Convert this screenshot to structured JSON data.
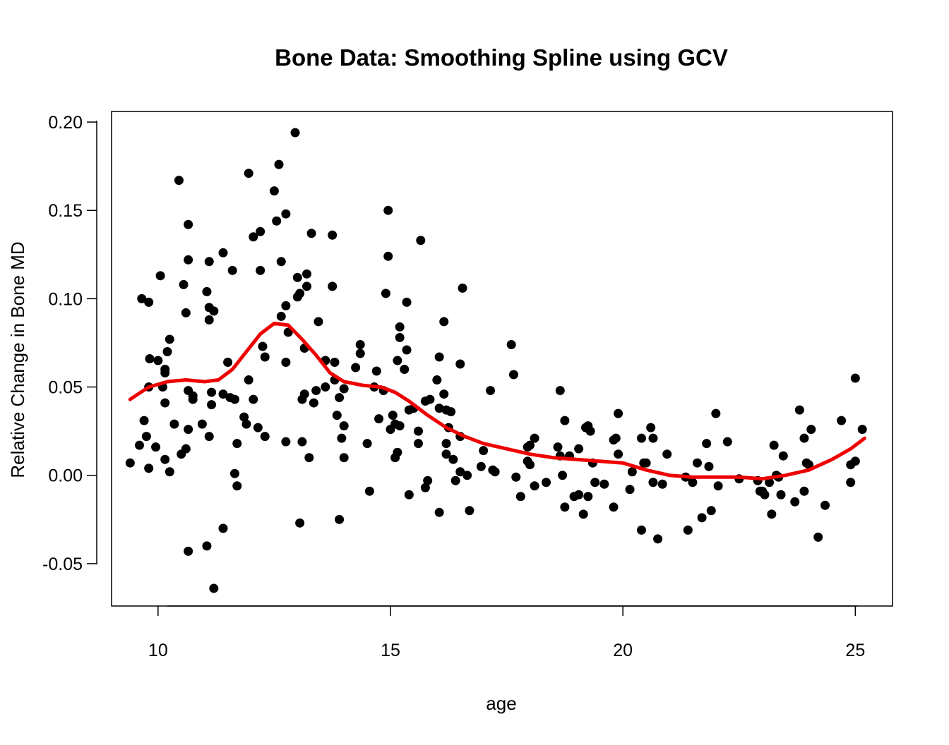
{
  "chart_data": {
    "type": "scatter",
    "title": "Bone Data: Smoothing Spline using GCV",
    "xlabel": "age",
    "ylabel": "Relative Change in Bone MD",
    "xlim": [
      9,
      25.8
    ],
    "ylim": [
      -0.074,
      0.206
    ],
    "xticks": [
      10,
      15,
      20,
      25
    ],
    "yticks": [
      -0.05,
      0.0,
      0.05,
      0.1,
      0.15,
      0.2
    ],
    "xtick_labels": [
      "10",
      "15",
      "20",
      "25"
    ],
    "ytick_labels": [
      "-0.05",
      "0.00",
      "0.05",
      "0.10",
      "0.15",
      "0.20"
    ],
    "grid": false,
    "series": [
      {
        "kind": "points",
        "color": "#000000",
        "points": [
          [
            9.4,
            0.007
          ],
          [
            9.6,
            0.017
          ],
          [
            9.65,
            0.1
          ],
          [
            9.7,
            0.031
          ],
          [
            9.75,
            0.022
          ],
          [
            9.8,
            0.004
          ],
          [
            9.8,
            0.05
          ],
          [
            9.8,
            0.098
          ],
          [
            9.82,
            0.066
          ],
          [
            9.95,
            0.016
          ],
          [
            10.0,
            0.065
          ],
          [
            10.05,
            0.113
          ],
          [
            10.1,
            0.05
          ],
          [
            10.15,
            0.06
          ],
          [
            10.15,
            0.058
          ],
          [
            10.15,
            0.041
          ],
          [
            10.15,
            0.009
          ],
          [
            10.2,
            0.07
          ],
          [
            10.25,
            0.077
          ],
          [
            10.25,
            0.002
          ],
          [
            10.35,
            0.029
          ],
          [
            10.45,
            0.167
          ],
          [
            10.5,
            0.012
          ],
          [
            10.55,
            0.108
          ],
          [
            10.6,
            0.092
          ],
          [
            10.6,
            0.015
          ],
          [
            10.65,
            0.142
          ],
          [
            10.65,
            0.122
          ],
          [
            10.65,
            0.048
          ],
          [
            10.65,
            0.026
          ],
          [
            10.65,
            -0.043
          ],
          [
            10.75,
            0.045
          ],
          [
            10.75,
            0.043
          ],
          [
            10.95,
            0.029
          ],
          [
            11.05,
            0.104
          ],
          [
            11.05,
            -0.04
          ],
          [
            11.1,
            0.121
          ],
          [
            11.1,
            0.095
          ],
          [
            11.1,
            0.088
          ],
          [
            11.1,
            0.022
          ],
          [
            11.15,
            0.047
          ],
          [
            11.15,
            0.04
          ],
          [
            11.2,
            0.093
          ],
          [
            11.2,
            -0.064
          ],
          [
            11.4,
            0.126
          ],
          [
            11.4,
            0.046
          ],
          [
            11.4,
            -0.03
          ],
          [
            11.5,
            0.064
          ],
          [
            11.55,
            0.044
          ],
          [
            11.6,
            0.116
          ],
          [
            11.65,
            0.043
          ],
          [
            11.65,
            0.001
          ],
          [
            11.7,
            0.018
          ],
          [
            11.7,
            -0.006
          ],
          [
            11.85,
            0.033
          ],
          [
            11.9,
            0.029
          ],
          [
            11.95,
            0.171
          ],
          [
            11.95,
            0.054
          ],
          [
            12.05,
            0.135
          ],
          [
            12.05,
            0.043
          ],
          [
            12.15,
            0.027
          ],
          [
            12.2,
            0.138
          ],
          [
            12.2,
            0.116
          ],
          [
            12.25,
            0.073
          ],
          [
            12.3,
            0.067
          ],
          [
            12.3,
            0.022
          ],
          [
            12.5,
            0.161
          ],
          [
            12.55,
            0.144
          ],
          [
            12.6,
            0.176
          ],
          [
            12.65,
            0.121
          ],
          [
            12.65,
            0.09
          ],
          [
            12.75,
            0.148
          ],
          [
            12.75,
            0.096
          ],
          [
            12.75,
            0.064
          ],
          [
            12.75,
            0.019
          ],
          [
            12.8,
            0.081
          ],
          [
            12.95,
            0.194
          ],
          [
            13.0,
            0.112
          ],
          [
            13.0,
            0.101
          ],
          [
            13.05,
            0.103
          ],
          [
            13.05,
            -0.027
          ],
          [
            13.1,
            0.043
          ],
          [
            13.1,
            0.019
          ],
          [
            13.15,
            0.046
          ],
          [
            13.15,
            0.072
          ],
          [
            13.2,
            0.114
          ],
          [
            13.2,
            0.107
          ],
          [
            13.25,
            0.01
          ],
          [
            13.3,
            0.137
          ],
          [
            13.35,
            0.041
          ],
          [
            13.4,
            0.048
          ],
          [
            13.45,
            0.087
          ],
          [
            13.6,
            0.05
          ],
          [
            13.6,
            0.065
          ],
          [
            13.75,
            0.136
          ],
          [
            13.75,
            0.107
          ],
          [
            13.8,
            0.064
          ],
          [
            13.8,
            0.054
          ],
          [
            13.85,
            0.034
          ],
          [
            13.9,
            0.044
          ],
          [
            13.9,
            -0.025
          ],
          [
            13.95,
            0.021
          ],
          [
            14.0,
            0.049
          ],
          [
            14.0,
            0.028
          ],
          [
            14.0,
            0.01
          ],
          [
            14.25,
            0.061
          ],
          [
            14.35,
            0.074
          ],
          [
            14.35,
            0.069
          ],
          [
            14.5,
            0.018
          ],
          [
            14.55,
            -0.009
          ],
          [
            14.65,
            0.05
          ],
          [
            14.7,
            0.059
          ],
          [
            14.75,
            0.032
          ],
          [
            14.85,
            0.048
          ],
          [
            14.9,
            0.103
          ],
          [
            14.95,
            0.15
          ],
          [
            14.95,
            0.124
          ],
          [
            15.0,
            0.026
          ],
          [
            15.05,
            0.034
          ],
          [
            15.1,
            0.029
          ],
          [
            15.1,
            0.01
          ],
          [
            15.15,
            0.013
          ],
          [
            15.15,
            0.065
          ],
          [
            15.2,
            0.084
          ],
          [
            15.2,
            0.078
          ],
          [
            15.2,
            0.028
          ],
          [
            15.3,
            0.06
          ],
          [
            15.35,
            0.098
          ],
          [
            15.35,
            0.071
          ],
          [
            15.4,
            0.037
          ],
          [
            15.4,
            -0.011
          ],
          [
            15.5,
            0.038
          ],
          [
            15.6,
            0.025
          ],
          [
            15.6,
            0.018
          ],
          [
            15.65,
            0.133
          ],
          [
            15.75,
            0.042
          ],
          [
            15.75,
            -0.007
          ],
          [
            15.8,
            -0.003
          ],
          [
            15.85,
            0.043
          ],
          [
            16.0,
            0.054
          ],
          [
            16.05,
            0.067
          ],
          [
            16.05,
            -0.021
          ],
          [
            16.05,
            0.038
          ],
          [
            16.15,
            0.087
          ],
          [
            16.15,
            0.046
          ],
          [
            16.2,
            0.037
          ],
          [
            16.2,
            0.018
          ],
          [
            16.2,
            0.012
          ],
          [
            16.25,
            0.027
          ],
          [
            16.3,
            0.036
          ],
          [
            16.35,
            0.009
          ],
          [
            16.4,
            -0.003
          ],
          [
            16.5,
            0.063
          ],
          [
            16.5,
            0.022
          ],
          [
            16.5,
            0.002
          ],
          [
            16.55,
            0.106
          ],
          [
            16.65,
            0.0
          ],
          [
            16.7,
            -0.02
          ],
          [
            16.95,
            0.005
          ],
          [
            17.0,
            0.014
          ],
          [
            17.15,
            0.048
          ],
          [
            17.2,
            0.003
          ],
          [
            17.25,
            0.002
          ],
          [
            17.6,
            0.074
          ],
          [
            17.65,
            0.057
          ],
          [
            17.7,
            -0.001
          ],
          [
            17.8,
            -0.012
          ],
          [
            17.95,
            0.016
          ],
          [
            17.95,
            0.008
          ],
          [
            18.0,
            0.017
          ],
          [
            18.0,
            0.006
          ],
          [
            18.1,
            0.021
          ],
          [
            18.1,
            -0.006
          ],
          [
            18.35,
            -0.004
          ],
          [
            18.6,
            0.016
          ],
          [
            18.65,
            0.048
          ],
          [
            18.65,
            0.011
          ],
          [
            18.7,
            0.0
          ],
          [
            18.75,
            0.031
          ],
          [
            18.75,
            -0.018
          ],
          [
            18.85,
            0.011
          ],
          [
            18.95,
            -0.012
          ],
          [
            19.05,
            -0.011
          ],
          [
            19.05,
            0.015
          ],
          [
            19.15,
            -0.022
          ],
          [
            19.2,
            0.027
          ],
          [
            19.25,
            0.028
          ],
          [
            19.25,
            -0.012
          ],
          [
            19.3,
            0.025
          ],
          [
            19.35,
            0.007
          ],
          [
            19.4,
            -0.004
          ],
          [
            19.6,
            -0.005
          ],
          [
            19.8,
            -0.018
          ],
          [
            19.8,
            0.02
          ],
          [
            19.85,
            0.021
          ],
          [
            19.9,
            0.035
          ],
          [
            19.9,
            0.012
          ],
          [
            20.15,
            -0.008
          ],
          [
            20.2,
            0.002
          ],
          [
            20.4,
            0.021
          ],
          [
            20.4,
            -0.031
          ],
          [
            20.45,
            0.007
          ],
          [
            20.5,
            0.007
          ],
          [
            20.6,
            0.027
          ],
          [
            20.65,
            0.021
          ],
          [
            20.65,
            -0.004
          ],
          [
            20.75,
            -0.036
          ],
          [
            20.85,
            -0.005
          ],
          [
            20.95,
            0.012
          ],
          [
            21.35,
            -0.001
          ],
          [
            21.4,
            -0.031
          ],
          [
            21.5,
            -0.004
          ],
          [
            21.6,
            0.007
          ],
          [
            21.7,
            -0.024
          ],
          [
            21.8,
            0.018
          ],
          [
            21.85,
            0.005
          ],
          [
            21.9,
            -0.02
          ],
          [
            22.0,
            0.035
          ],
          [
            22.05,
            -0.006
          ],
          [
            22.25,
            0.019
          ],
          [
            22.5,
            -0.002
          ],
          [
            22.9,
            -0.003
          ],
          [
            22.95,
            -0.009
          ],
          [
            23.0,
            -0.009
          ],
          [
            23.05,
            -0.011
          ],
          [
            23.15,
            -0.004
          ],
          [
            23.2,
            -0.022
          ],
          [
            23.25,
            0.017
          ],
          [
            23.3,
            0.0
          ],
          [
            23.35,
            -0.001
          ],
          [
            23.4,
            -0.011
          ],
          [
            23.45,
            0.011
          ],
          [
            23.7,
            -0.015
          ],
          [
            23.8,
            0.037
          ],
          [
            23.9,
            0.021
          ],
          [
            23.9,
            -0.009
          ],
          [
            23.95,
            0.007
          ],
          [
            24.0,
            0.006
          ],
          [
            24.05,
            0.026
          ],
          [
            24.2,
            -0.035
          ],
          [
            24.35,
            -0.017
          ],
          [
            24.7,
            0.031
          ],
          [
            24.9,
            0.006
          ],
          [
            24.9,
            -0.004
          ],
          [
            25.0,
            0.055
          ],
          [
            25.0,
            0.008
          ],
          [
            25.15,
            0.026
          ]
        ]
      },
      {
        "kind": "smooth_line",
        "color": "#ee0000",
        "points": [
          [
            9.4,
            0.043
          ],
          [
            9.8,
            0.05
          ],
          [
            10.2,
            0.053
          ],
          [
            10.6,
            0.054
          ],
          [
            11.0,
            0.053
          ],
          [
            11.3,
            0.054
          ],
          [
            11.6,
            0.06
          ],
          [
            11.9,
            0.07
          ],
          [
            12.2,
            0.08
          ],
          [
            12.5,
            0.086
          ],
          [
            12.8,
            0.085
          ],
          [
            13.1,
            0.077
          ],
          [
            13.4,
            0.068
          ],
          [
            13.7,
            0.058
          ],
          [
            14.0,
            0.053
          ],
          [
            14.4,
            0.051
          ],
          [
            14.8,
            0.05
          ],
          [
            15.1,
            0.047
          ],
          [
            15.4,
            0.042
          ],
          [
            15.8,
            0.034
          ],
          [
            16.2,
            0.027
          ],
          [
            16.6,
            0.022
          ],
          [
            17.0,
            0.018
          ],
          [
            17.5,
            0.015
          ],
          [
            18.0,
            0.012
          ],
          [
            18.5,
            0.01
          ],
          [
            19.0,
            0.009
          ],
          [
            19.5,
            0.008
          ],
          [
            20.0,
            0.007
          ],
          [
            20.5,
            0.003
          ],
          [
            21.0,
            0.0
          ],
          [
            21.5,
            -0.001
          ],
          [
            22.0,
            -0.001
          ],
          [
            22.5,
            -0.001
          ],
          [
            23.0,
            -0.002
          ],
          [
            23.5,
            0.0
          ],
          [
            24.0,
            0.003
          ],
          [
            24.5,
            0.009
          ],
          [
            24.9,
            0.015
          ],
          [
            25.2,
            0.021
          ]
        ]
      }
    ]
  }
}
